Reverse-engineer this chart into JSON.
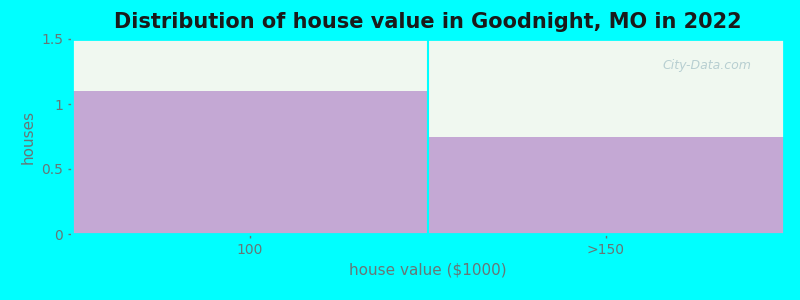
{
  "title": "Distribution of house value in Goodnight, MO in 2022",
  "xlabel": "house value ($1000)",
  "ylabel": "houses",
  "categories": [
    "100",
    ">150"
  ],
  "values": [
    1.1,
    0.75
  ],
  "bar_color": "#c4a8d4",
  "ylim": [
    0,
    1.5
  ],
  "yticks": [
    0,
    0.5,
    1.0,
    1.5
  ],
  "background_color": "#00ffff",
  "plot_bg_color": "#f0f8f0",
  "title_fontsize": 15,
  "label_fontsize": 11,
  "tick_fontsize": 10,
  "title_color": "#1a1a1a",
  "label_color": "#667777",
  "watermark_text": "City-Data.com",
  "watermark_color": "#aec8cc"
}
